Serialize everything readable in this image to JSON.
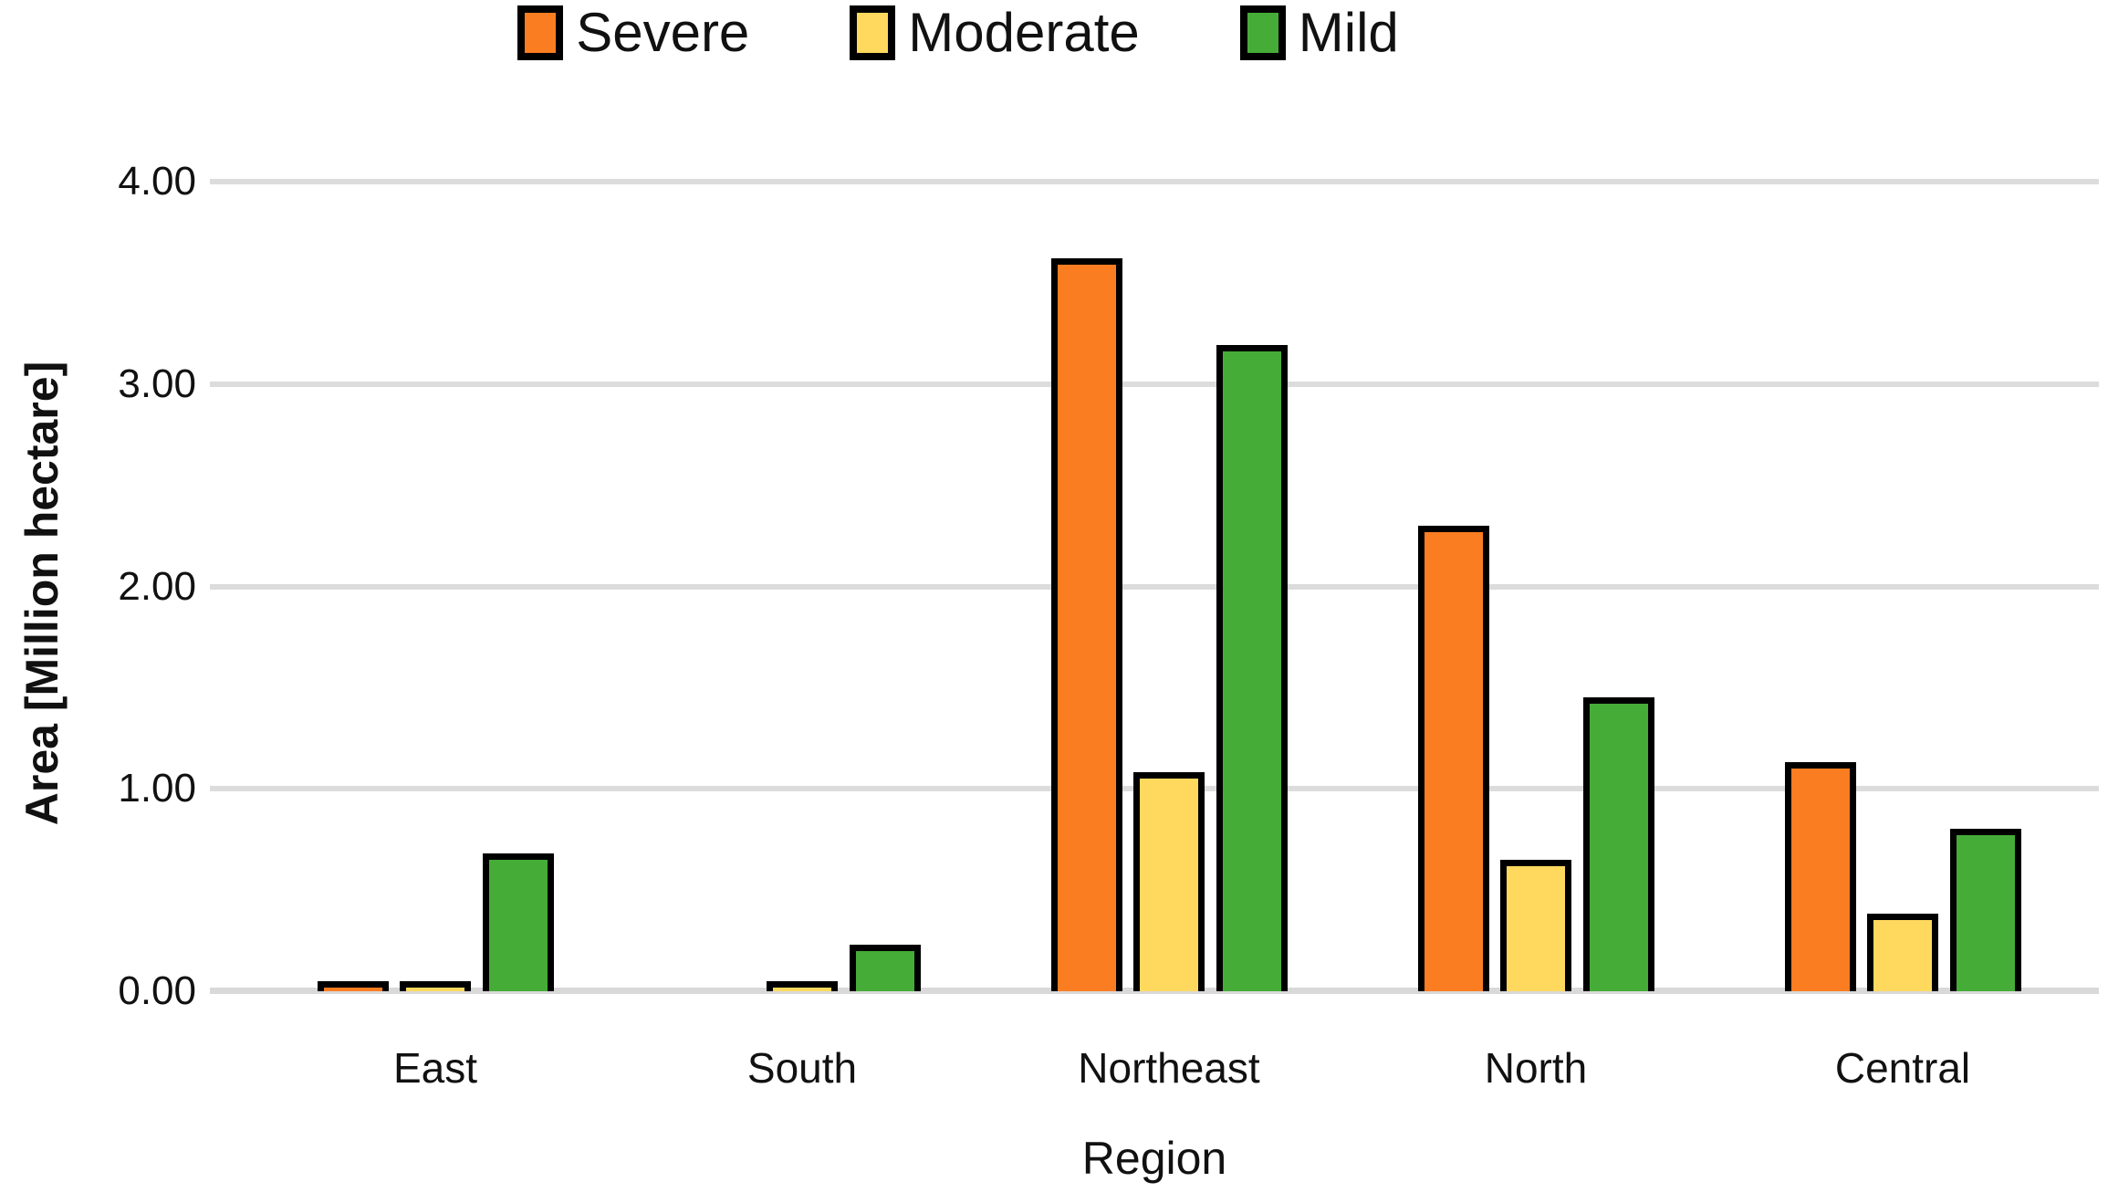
{
  "legend": {
    "items": [
      {
        "label": "Severe",
        "color": "#fa7d21"
      },
      {
        "label": "Moderate",
        "color": "#ffd95e"
      },
      {
        "label": "Mild",
        "color": "#46ac38"
      }
    ]
  },
  "axes": {
    "y_title": "Area [Million hectare]",
    "x_title": "Region",
    "y_tick_labels": [
      "0.00",
      "1.00",
      "2.00",
      "3.00",
      "4.00"
    ]
  },
  "chart_data": {
    "type": "bar",
    "title": "",
    "categories": [
      "East",
      "South",
      "Northeast",
      "North",
      "Central"
    ],
    "series": [
      {
        "name": "Severe",
        "color": "#fa7d21",
        "values": [
          0.02,
          0.0,
          3.59,
          2.27,
          1.1
        ]
      },
      {
        "name": "Moderate",
        "color": "#ffd95e",
        "values": [
          0.02,
          0.02,
          1.05,
          0.62,
          0.35
        ]
      },
      {
        "name": "Mild",
        "color": "#46ac38",
        "values": [
          0.65,
          0.2,
          3.16,
          1.42,
          0.77
        ]
      }
    ],
    "xlabel": "Region",
    "ylabel": "Area [Million hectare]",
    "ylim": [
      0,
      4
    ],
    "ytick_values": [
      0,
      1,
      2,
      3,
      4
    ],
    "grid": true,
    "gridline_color": "#dcdcdc",
    "bar_border_color": "#000000",
    "legend_position": "top"
  }
}
